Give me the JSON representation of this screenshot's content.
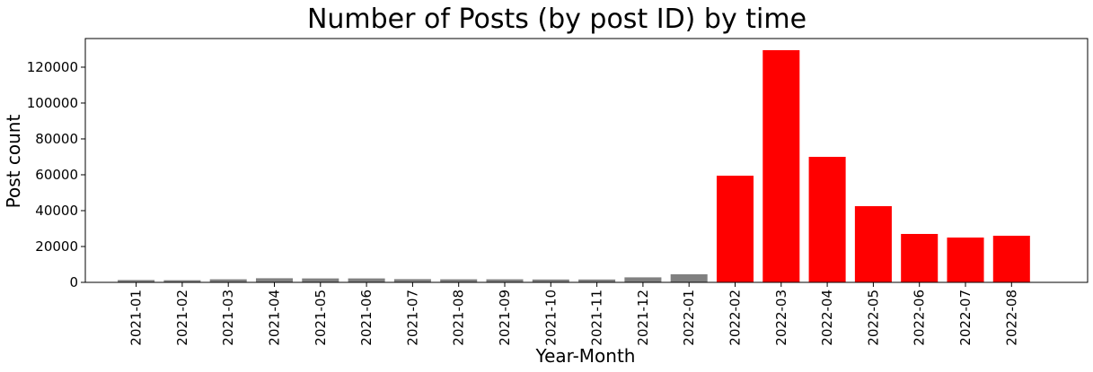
{
  "chart_data": {
    "type": "bar",
    "title": "Number of Posts (by post ID) by time",
    "xlabel": "Year-Month",
    "ylabel": "Post count",
    "categories": [
      "2021-01",
      "2021-02",
      "2021-03",
      "2021-04",
      "2021-05",
      "2021-06",
      "2021-07",
      "2021-08",
      "2021-09",
      "2021-10",
      "2021-11",
      "2021-12",
      "2022-01",
      "2022-02",
      "2022-03",
      "2022-04",
      "2022-05",
      "2022-06",
      "2022-07",
      "2022-08"
    ],
    "values": [
      1300,
      1200,
      1700,
      2300,
      2200,
      2200,
      1800,
      1700,
      1700,
      1600,
      1600,
      2800,
      4500,
      59500,
      129500,
      70000,
      42500,
      27000,
      25000,
      26000
    ],
    "bar_colors": [
      "#808080",
      "#808080",
      "#808080",
      "#808080",
      "#808080",
      "#808080",
      "#808080",
      "#808080",
      "#808080",
      "#808080",
      "#808080",
      "#808080",
      "#808080",
      "#ff0000",
      "#ff0000",
      "#ff0000",
      "#ff0000",
      "#ff0000",
      "#ff0000",
      "#ff0000"
    ],
    "ylim": [
      0,
      135975
    ],
    "yticks": [
      0,
      20000,
      40000,
      60000,
      80000,
      100000,
      120000
    ],
    "grid": false,
    "legend": false
  }
}
